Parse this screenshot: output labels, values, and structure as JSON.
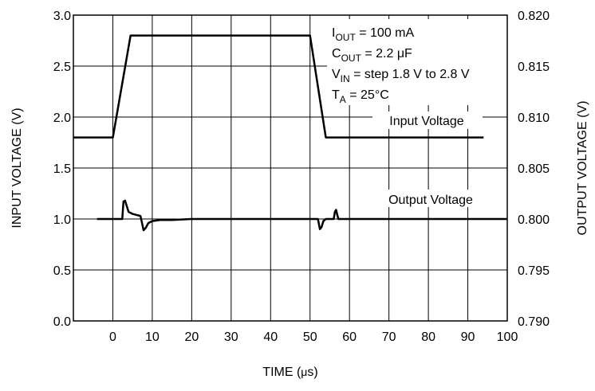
{
  "chart_data": {
    "type": "line",
    "xlabel_prefix": "TIME (",
    "xlabel_mu": "μ",
    "xlabel_suffix": "s)",
    "ylabel_left": "INPUT VOLTAGE (V)",
    "ylabel_right": "OUTPUT VOLTAGE (V)",
    "xlim": [
      -10,
      100
    ],
    "ylim_left": [
      0,
      3.0
    ],
    "ylim_right": [
      0.79,
      0.82
    ],
    "grid": true,
    "x_ticks": [
      "0",
      "10",
      "20",
      "30",
      "40",
      "50",
      "60",
      "70",
      "80",
      "90",
      "100"
    ],
    "y_ticks_left": [
      "0.0",
      "0.5",
      "1.0",
      "1.5",
      "2.0",
      "2.5",
      "3.0"
    ],
    "y_ticks_right": [
      "0.790",
      "0.795",
      "0.800",
      "0.805",
      "0.810",
      "0.815",
      "0.820"
    ],
    "annotations": [
      {
        "main": "I",
        "sub": "OUT",
        "rest": " = 100 mA"
      },
      {
        "main": "C",
        "sub": "OUT",
        "rest": " = 2.2 μF"
      },
      {
        "main": "V",
        "sub": "IN",
        "rest": " = step 1.8 V to 2.8 V"
      },
      {
        "main": "T",
        "sub": "A",
        "rest": " = 25°C"
      }
    ],
    "series_labels": [
      "Input Voltage",
      "Output Voltage"
    ],
    "series": [
      {
        "name": "Input Voltage",
        "axis": "left",
        "x": [
          -10,
          0,
          4.5,
          50,
          54,
          94
        ],
        "y": [
          1.8,
          1.8,
          2.8,
          2.8,
          1.8,
          1.8
        ]
      },
      {
        "name": "Output Voltage",
        "axis": "right",
        "x": [
          -4,
          2.4,
          2.7,
          3.1,
          4,
          5,
          6,
          7,
          7.4,
          7.8,
          8.3,
          9,
          10,
          12,
          15,
          20,
          52,
          52.2,
          52.5,
          52.9,
          53.4,
          54,
          56,
          56.3,
          56.6,
          56.9,
          57.2,
          57.6,
          100
        ],
        "y": [
          0.8,
          0.8,
          0.8017,
          0.8018,
          0.8007,
          0.8005,
          0.8004,
          0.8003,
          0.7996,
          0.7989,
          0.7991,
          0.7996,
          0.7998,
          0.7999,
          0.7999,
          0.8,
          0.8,
          0.7996,
          0.799,
          0.7992,
          0.7998,
          0.8,
          0.8,
          0.8007,
          0.8009,
          0.8004,
          0.8,
          0.8,
          0.8
        ]
      }
    ]
  }
}
